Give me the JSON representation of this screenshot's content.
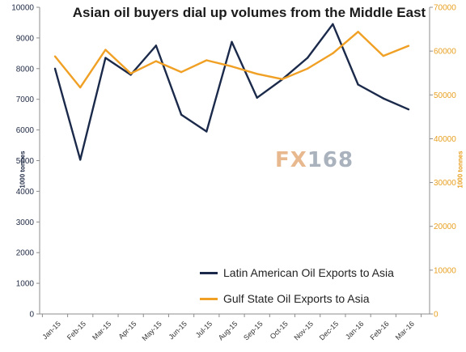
{
  "title": "Asian oil buyers dial up volumes from the Middle East",
  "watermark": {
    "fx": "FX",
    "num": "168"
  },
  "chart_data": {
    "type": "line",
    "title": "Asian oil buyers dial up volumes from the Middle East",
    "categories": [
      "Jan-15",
      "Feb-15",
      "Mar-15",
      "Apr-15",
      "May-15",
      "Jun-15",
      "Jul-15",
      "Aug-15",
      "Sep-15",
      "Oct-15",
      "Nov-15",
      "Dec-15",
      "Jan-16",
      "Feb-16",
      "Mar-16"
    ],
    "y_left": {
      "label": "1000 tonnes",
      "ylim": [
        0,
        10000
      ],
      "ticks": [
        0,
        1000,
        2000,
        3000,
        4000,
        5000,
        6000,
        7000,
        8000,
        9000,
        10000
      ]
    },
    "y_right": {
      "label": "1000 tonnes",
      "ylim": [
        0,
        70000
      ],
      "ticks": [
        0,
        10000,
        20000,
        30000,
        40000,
        50000,
        60000,
        70000
      ]
    },
    "series": [
      {
        "name": "Latin American Oil Exports to Asia",
        "axis": "left",
        "color": "#1b2a4a",
        "values": [
          8000,
          5030,
          8350,
          7800,
          8750,
          6500,
          5950,
          8870,
          7050,
          7650,
          8350,
          9450,
          7480,
          7030,
          6670
        ]
      },
      {
        "name": "Gulf State Oil Exports to Asia",
        "axis": "right",
        "color": "#f0a024",
        "values": [
          58800,
          51700,
          60300,
          54900,
          57700,
          55200,
          57900,
          56500,
          54800,
          53600,
          56000,
          59500,
          64400,
          58900,
          61200
        ]
      }
    ],
    "grid": false,
    "legend_position": "bottom-right"
  }
}
